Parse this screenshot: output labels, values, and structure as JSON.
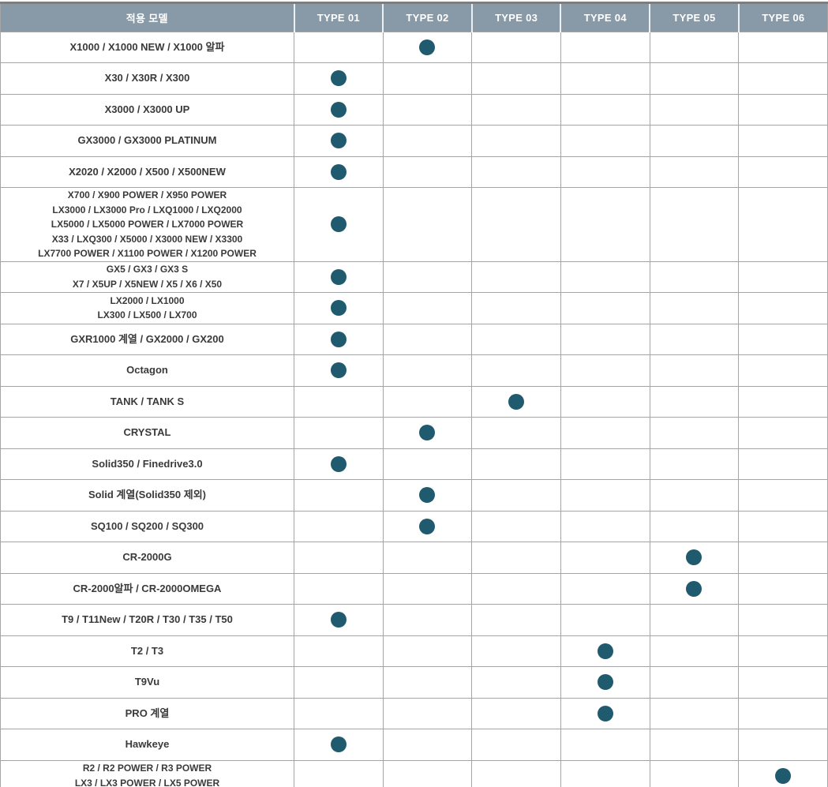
{
  "colors": {
    "header_bg": "#8899a7",
    "header_text": "#ffffff",
    "dot": "#1f5a6e",
    "grid": "#a5a5a5",
    "text": "#3a3a3a",
    "top_line": "#7e7e7e"
  },
  "chart_data": {
    "type": "table",
    "title": "적용 모델별 TYPE 호환표",
    "columns": [
      "적용 모델",
      "TYPE 01",
      "TYPE 02",
      "TYPE 03",
      "TYPE 04",
      "TYPE 05",
      "TYPE 06"
    ],
    "marker": "filled-circle",
    "rows": [
      {
        "model_lines": [
          "X1000 / X1000 NEW / X1000 알파"
        ],
        "type": "TYPE 02",
        "type_index": 2
      },
      {
        "model_lines": [
          "X30 / X30R / X300"
        ],
        "type": "TYPE 01",
        "type_index": 1
      },
      {
        "model_lines": [
          "X3000 / X3000 UP"
        ],
        "type": "TYPE 01",
        "type_index": 1
      },
      {
        "model_lines": [
          "GX3000 / GX3000 PLATINUM"
        ],
        "type": "TYPE 01",
        "type_index": 1
      },
      {
        "model_lines": [
          "X2020 / X2000 / X500 / X500NEW"
        ],
        "type": "TYPE 01",
        "type_index": 1
      },
      {
        "model_lines": [
          "X700 / X900 POWER / X950 POWER",
          "LX3000 / LX3000 Pro / LXQ1000 / LXQ2000",
          "LX5000 / LX5000 POWER / LX7000 POWER",
          "X33 / LXQ300 / X5000 / X3000 NEW / X3300",
          "LX7700 POWER / X1100 POWER / X1200 POWER"
        ],
        "type": "TYPE 01",
        "type_index": 1
      },
      {
        "model_lines": [
          "GX5 / GX3 / GX3 S",
          "X7 / X5UP / X5NEW / X5 / X6 / X50"
        ],
        "type": "TYPE 01",
        "type_index": 1
      },
      {
        "model_lines": [
          "LX2000 / LX1000",
          "LX300 / LX500 / LX700"
        ],
        "type": "TYPE 01",
        "type_index": 1
      },
      {
        "model_lines": [
          "GXR1000 계열 / GX2000 / GX200"
        ],
        "type": "TYPE 01",
        "type_index": 1
      },
      {
        "model_lines": [
          "Octagon"
        ],
        "type": "TYPE 01",
        "type_index": 1
      },
      {
        "model_lines": [
          "TANK / TANK S"
        ],
        "type": "TYPE 03",
        "type_index": 3
      },
      {
        "model_lines": [
          "CRYSTAL"
        ],
        "type": "TYPE 02",
        "type_index": 2
      },
      {
        "model_lines": [
          "Solid350 / Finedrive3.0"
        ],
        "type": "TYPE 01",
        "type_index": 1
      },
      {
        "model_lines": [
          "Solid 계열(Solid350 제외)"
        ],
        "type": "TYPE 02",
        "type_index": 2
      },
      {
        "model_lines": [
          "SQ100 / SQ200 / SQ300"
        ],
        "type": "TYPE 02",
        "type_index": 2
      },
      {
        "model_lines": [
          "CR-2000G"
        ],
        "type": "TYPE 05",
        "type_index": 5
      },
      {
        "model_lines": [
          "CR-2000알파 / CR-2000OMEGA"
        ],
        "type": "TYPE 05",
        "type_index": 5
      },
      {
        "model_lines": [
          "T9 / T11New / T20R / T30 / T35 / T50"
        ],
        "type": "TYPE 01",
        "type_index": 1
      },
      {
        "model_lines": [
          "T2 / T3"
        ],
        "type": "TYPE 04",
        "type_index": 4
      },
      {
        "model_lines": [
          "T9Vu"
        ],
        "type": "TYPE 04",
        "type_index": 4
      },
      {
        "model_lines": [
          "PRO 계열"
        ],
        "type": "TYPE 04",
        "type_index": 4
      },
      {
        "model_lines": [
          "Hawkeye"
        ],
        "type": "TYPE 01",
        "type_index": 1
      },
      {
        "model_lines": [
          "R2 / R2 POWER / R3 POWER",
          "LX3 / LX3 POWER / LX5 POWER"
        ],
        "type": "TYPE 06",
        "type_index": 6
      }
    ]
  }
}
